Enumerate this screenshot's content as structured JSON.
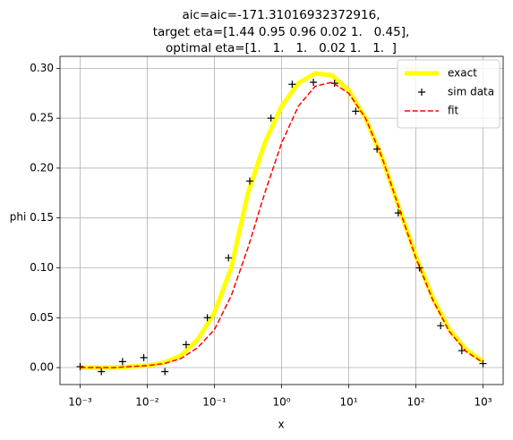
{
  "chart_data": {
    "type": "line",
    "title": [
      "aic=aic=-171.31016932372916,",
      "target eta=[1.44 0.95 0.96 0.02 1.   0.45],",
      "optimal eta=[1.   1.   1.   0.02 1.   1.  ]"
    ],
    "x_label": "x",
    "y_label": "phi",
    "x_scale": "log",
    "grid": true,
    "legend": "upper right",
    "xlim": [
      0.000501,
      1995
    ],
    "ylim": [
      -0.017,
      0.312
    ],
    "xticks": [
      {
        "value": 0.001,
        "label": "10⁻³"
      },
      {
        "value": 0.01,
        "label": "10⁻²"
      },
      {
        "value": 0.1,
        "label": "10⁻¹"
      },
      {
        "value": 1,
        "label": "10⁰"
      },
      {
        "value": 10,
        "label": "10¹"
      },
      {
        "value": 100,
        "label": "10²"
      },
      {
        "value": 1000,
        "label": "10³"
      }
    ],
    "yticks": [
      {
        "value": 0,
        "label": "0.00"
      },
      {
        "value": 0.05,
        "label": "0.05"
      },
      {
        "value": 0.1,
        "label": "0.10"
      },
      {
        "value": 0.15,
        "label": "0.15"
      },
      {
        "value": 0.2,
        "label": "0.20"
      },
      {
        "value": 0.25,
        "label": "0.25"
      },
      {
        "value": 0.3,
        "label": "0.30"
      }
    ],
    "series": [
      {
        "name": "exact",
        "color": "#ffff00",
        "linestyle": "solid",
        "linewidth": 5,
        "marker": "none",
        "x": [
          0.001,
          0.00178,
          0.00316,
          0.00562,
          0.01,
          0.0178,
          0.0316,
          0.0562,
          0.1,
          0.178,
          0.316,
          0.562,
          1,
          1.78,
          3.16,
          5.62,
          10,
          17.8,
          31.6,
          56.2,
          100,
          178,
          316,
          562,
          1000
        ],
        "values": [
          0,
          0,
          0,
          0.001,
          0.002,
          0.005,
          0.012,
          0.028,
          0.055,
          0.1,
          0.175,
          0.225,
          0.262,
          0.285,
          0.295,
          0.293,
          0.278,
          0.25,
          0.21,
          0.16,
          0.112,
          0.07,
          0.038,
          0.018,
          0.006
        ]
      },
      {
        "name": "sim data",
        "color": "#000000",
        "linestyle": "none",
        "linewidth": 0,
        "marker": "+",
        "x": [
          0.001,
          0.00207,
          0.00428,
          0.00886,
          0.0183,
          0.0379,
          0.0785,
          0.162,
          0.336,
          0.695,
          1.44,
          2.98,
          6.16,
          12.7,
          26.4,
          54.6,
          113,
          234,
          483,
          1000
        ],
        "values": [
          0.001,
          -0.004,
          0.006,
          0.01,
          -0.004,
          0.023,
          0.05,
          0.11,
          0.187,
          0.25,
          0.284,
          0.286,
          0.285,
          0.257,
          0.219,
          0.155,
          0.1,
          0.042,
          0.017,
          0.004
        ]
      },
      {
        "name": "fit",
        "color": "#ff0000",
        "linestyle": "dashed",
        "linewidth": 1.5,
        "marker": "none",
        "x": [
          0.001,
          0.00178,
          0.00316,
          0.00562,
          0.01,
          0.0178,
          0.0316,
          0.0562,
          0.1,
          0.178,
          0.316,
          0.562,
          1,
          1.78,
          3.16,
          5.62,
          10,
          17.8,
          31.6,
          56.2,
          100,
          178,
          316,
          562,
          1000
        ],
        "values": [
          0,
          0,
          0,
          0.001,
          0.002,
          0.004,
          0.009,
          0.02,
          0.038,
          0.072,
          0.12,
          0.175,
          0.225,
          0.262,
          0.282,
          0.286,
          0.275,
          0.25,
          0.21,
          0.16,
          0.11,
          0.068,
          0.036,
          0.016,
          0.005
        ]
      }
    ]
  }
}
